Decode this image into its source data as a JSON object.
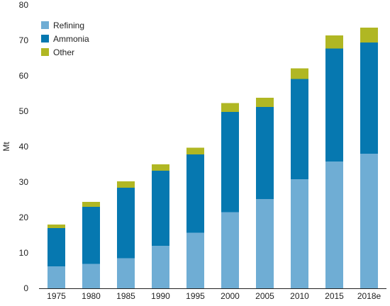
{
  "chart_data": {
    "type": "bar",
    "stacked": true,
    "title": "",
    "xlabel": "",
    "ylabel": "Mt",
    "ylim": [
      0,
      80
    ],
    "yticks": [
      0,
      10,
      20,
      30,
      40,
      50,
      60,
      70,
      80
    ],
    "grid": false,
    "legend_position": "top-left",
    "categories": [
      "1975",
      "1980",
      "1985",
      "1990",
      "1995",
      "2000",
      "2005",
      "2010",
      "2015",
      "2018e"
    ],
    "series": [
      {
        "name": "Refining",
        "color": "#6fadd4",
        "values": [
          6.2,
          6.9,
          8.5,
          12.0,
          15.7,
          21.5,
          25.2,
          30.8,
          35.8,
          38.0
        ]
      },
      {
        "name": "Ammonia",
        "color": "#0678b0",
        "values": [
          10.8,
          16.1,
          19.9,
          21.2,
          22.1,
          28.3,
          26.0,
          28.3,
          31.9,
          31.4
        ]
      },
      {
        "name": "Other",
        "color": "#b0b723",
        "values": [
          1.0,
          1.4,
          1.8,
          1.8,
          1.9,
          2.5,
          2.6,
          3.0,
          3.7,
          4.2
        ]
      }
    ]
  }
}
